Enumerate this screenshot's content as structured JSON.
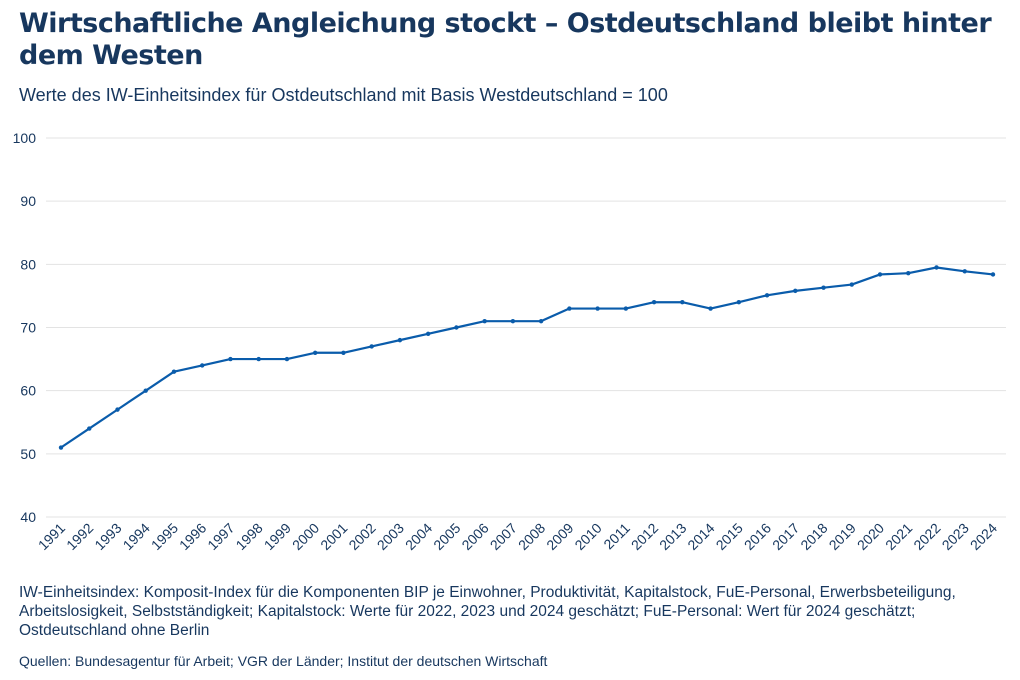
{
  "title": "Wirtschaftliche Angleichung stockt – Ostdeutschland bleibt hinter dem Westen",
  "subtitle": "Werte des IW-Einheitsindex für Ostdeutschland mit Basis Westdeutschland = 100",
  "notes": "IW-Einheitsindex: Komposit-Index für die Komponenten BIP je Einwohner, Produktivität, Kapitalstock, FuE-Personal, Erwerbsbeteiligung, Arbeitslosigkeit, Selbstständigkeit; Kapitalstock: Werte für 2022, 2023 und 2024 geschätzt; FuE-Personal: Wert für 2024 geschätzt; Ostdeutschland ohne Berlin",
  "source": "Quellen: Bundesagentur für Arbeit; VGR der Länder; Institut der deutschen Wirtschaft",
  "chart_data": {
    "type": "line",
    "title": "Wirtschaftliche Angleichung stockt – Ostdeutschland bleibt hinter dem Westen",
    "xlabel": "",
    "ylabel": "",
    "ylim": [
      40,
      100
    ],
    "yticks": [
      40,
      50,
      60,
      70,
      80,
      90,
      100
    ],
    "grid": true,
    "color": "#0a5cab",
    "x": [
      "1991",
      "1992",
      "1993",
      "1994",
      "1995",
      "1996",
      "1997",
      "1998",
      "1999",
      "2000",
      "2001",
      "2002",
      "2003",
      "2004",
      "2005",
      "2006",
      "2007",
      "2008",
      "2009",
      "2010",
      "2011",
      "2012",
      "2013",
      "2014",
      "2015",
      "2016",
      "2017",
      "2018",
      "2019",
      "2020",
      "2021",
      "2022",
      "2023",
      "2024"
    ],
    "values": [
      51,
      54,
      57,
      60,
      63,
      64,
      65,
      65,
      65,
      66,
      66,
      67,
      68,
      69,
      70,
      71,
      71,
      71,
      73,
      73,
      73,
      74,
      74,
      73,
      74,
      75.1,
      75.8,
      76.3,
      76.8,
      78.4,
      78.6,
      79.5,
      78.9,
      78.4
    ]
  }
}
